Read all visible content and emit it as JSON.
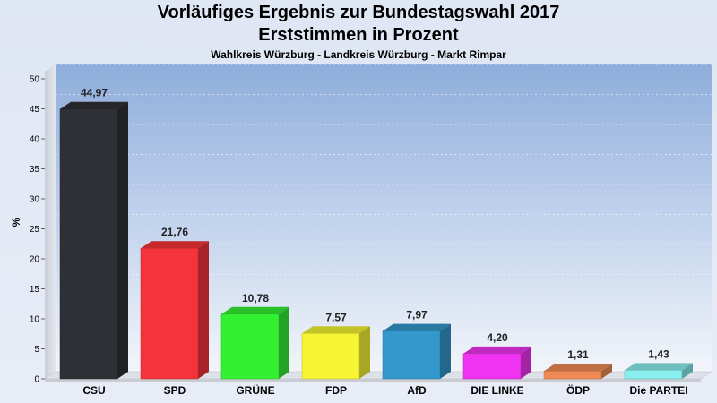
{
  "header": {
    "title": "Vorläufiges Ergebnis zur Bundestagswahl 2017",
    "subtitle": "Erststimmen in Prozent",
    "subsubtitle": "Wahlkreis Würzburg - Landkreis Würzburg - Markt Rimpar"
  },
  "chart_data": {
    "type": "bar",
    "title": "Vorläufiges Ergebnis zur Bundestagswahl 2017",
    "subtitle": "Erststimmen in Prozent",
    "categories": [
      "CSU",
      "SPD",
      "GRÜNE",
      "FDP",
      "AfD",
      "DIE LINKE",
      "ÖDP",
      "Die PARTEI"
    ],
    "values": [
      44.97,
      21.76,
      10.78,
      7.57,
      7.97,
      4.2,
      1.31,
      1.43
    ],
    "value_labels": [
      "44,97",
      "21,76",
      "10,78",
      "7,57",
      "7,97",
      "4,20",
      "1,31",
      "1,43"
    ],
    "colors": [
      "#2f3036",
      "#f5333a",
      "#33f033",
      "#f5f533",
      "#3399cc",
      "#f033f0",
      "#f08a55",
      "#88eeee"
    ],
    "ylabel": "%",
    "xlabel": "",
    "ylim": [
      0,
      50
    ],
    "yticks": [
      0,
      5,
      10,
      15,
      20,
      25,
      30,
      35,
      40,
      45,
      50
    ],
    "grid": true,
    "style": "3d"
  }
}
